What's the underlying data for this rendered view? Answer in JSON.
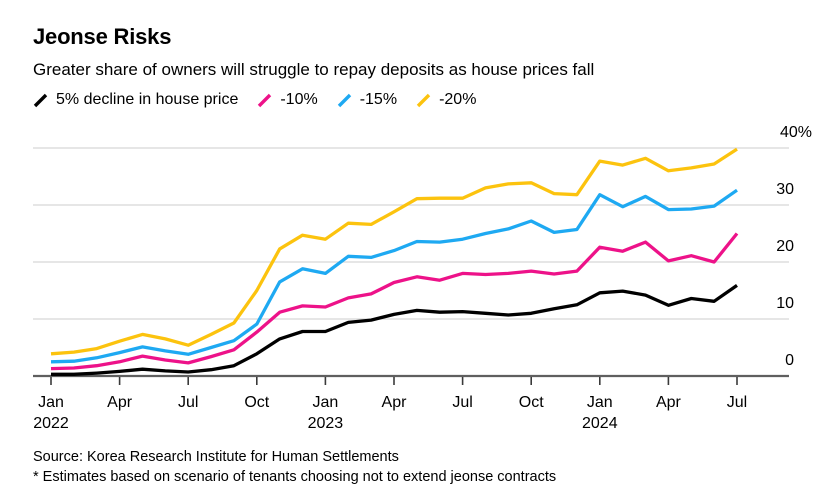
{
  "header": {
    "title": "Jeonse Risks",
    "subtitle": "Greater share of owners will struggle to repay deposits as house prices fall"
  },
  "footer": {
    "source": "Source: Korea Research Institute for Human Settlements",
    "note": "* Estimates based on scenario of tenants choosing not to extend jeonse contracts"
  },
  "colors": {
    "grid": "#d8d8d8",
    "baseline": "#5f5f5f",
    "tick": "#3a3a3a",
    "text": "#000000",
    "background": "#ffffff"
  },
  "chart_data": {
    "type": "line",
    "title": "Jeonse Risks",
    "subtitle": "Greater share of owners will struggle to repay deposits as house prices fall",
    "unit": "%",
    "grid": "horizontal",
    "legend_position": "top",
    "ylim": [
      0,
      40
    ],
    "x": [
      "2022-01",
      "2022-02",
      "2022-03",
      "2022-04",
      "2022-05",
      "2022-06",
      "2022-07",
      "2022-08",
      "2022-09",
      "2022-10",
      "2022-11",
      "2022-12",
      "2023-01",
      "2023-02",
      "2023-03",
      "2023-04",
      "2023-05",
      "2023-06",
      "2023-07",
      "2023-08",
      "2023-09",
      "2023-10",
      "2023-11",
      "2023-12",
      "2024-01",
      "2024-02",
      "2024-03",
      "2024-04",
      "2024-05",
      "2024-06",
      "2024-07"
    ],
    "series": [
      {
        "name": "5% decline in house price",
        "color": "#000000",
        "values": [
          0.3,
          0.3,
          0.5,
          0.8,
          1.2,
          0.9,
          0.7,
          1.1,
          1.8,
          3.9,
          6.5,
          7.8,
          7.8,
          9.4,
          9.8,
          10.8,
          11.5,
          11.2,
          11.3,
          11.0,
          10.7,
          11.0,
          11.8,
          12.5,
          14.6,
          14.9,
          14.2,
          12.4,
          13.6,
          13.1,
          15.9
        ]
      },
      {
        "name": "-10%",
        "color": "#ed1289",
        "values": [
          1.3,
          1.4,
          1.8,
          2.5,
          3.5,
          2.8,
          2.3,
          3.4,
          4.6,
          7.7,
          11.2,
          12.3,
          12.1,
          13.7,
          14.4,
          16.4,
          17.4,
          16.8,
          18.0,
          17.8,
          18.0,
          18.4,
          17.9,
          18.4,
          22.6,
          21.9,
          23.5,
          20.2,
          21.1,
          20.0,
          25.0
        ]
      },
      {
        "name": "-15%",
        "color": "#1ea9f2",
        "values": [
          2.5,
          2.6,
          3.2,
          4.1,
          5.1,
          4.4,
          3.8,
          5.0,
          6.2,
          9.1,
          16.5,
          18.8,
          18.0,
          21.0,
          20.8,
          22.0,
          23.6,
          23.5,
          24.0,
          25.0,
          25.8,
          27.2,
          25.2,
          25.7,
          31.8,
          29.7,
          31.5,
          29.2,
          29.3,
          29.8,
          32.6
        ]
      },
      {
        "name": "-20%",
        "color": "#fcc30e",
        "values": [
          3.9,
          4.2,
          4.8,
          6.1,
          7.3,
          6.5,
          5.4,
          7.3,
          9.3,
          15.0,
          22.3,
          24.7,
          24.0,
          26.8,
          26.6,
          28.8,
          31.1,
          31.2,
          31.2,
          33.0,
          33.7,
          33.9,
          32.0,
          31.8,
          37.7,
          37.0,
          38.2,
          36.0,
          36.5,
          37.2,
          39.8
        ]
      }
    ],
    "yticks": [
      {
        "value": 0,
        "label": "0"
      },
      {
        "value": 10,
        "label": "10"
      },
      {
        "value": 20,
        "label": "20"
      },
      {
        "value": 30,
        "label": "30"
      },
      {
        "value": 40,
        "label": "40%"
      }
    ],
    "xticks": [
      {
        "index": 0,
        "month": "Jan",
        "year": "2022"
      },
      {
        "index": 3,
        "month": "Apr"
      },
      {
        "index": 6,
        "month": "Jul"
      },
      {
        "index": 9,
        "month": "Oct"
      },
      {
        "index": 12,
        "month": "Jan",
        "year": "2023"
      },
      {
        "index": 15,
        "month": "Apr"
      },
      {
        "index": 18,
        "month": "Jul"
      },
      {
        "index": 21,
        "month": "Oct"
      },
      {
        "index": 24,
        "month": "Jan",
        "year": "2024"
      },
      {
        "index": 27,
        "month": "Apr"
      },
      {
        "index": 30,
        "month": "Jul"
      }
    ]
  }
}
